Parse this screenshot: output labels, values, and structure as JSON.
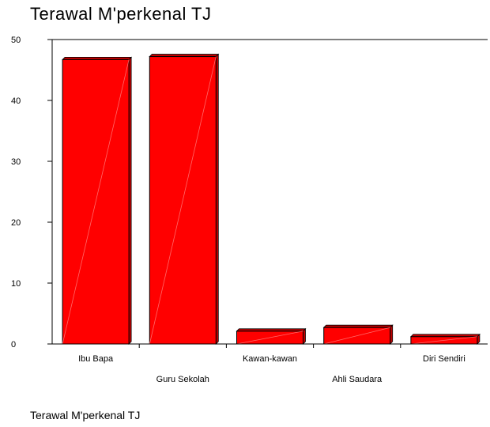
{
  "chart_data": {
    "type": "bar",
    "title": "Terawal M'perkenal TJ",
    "xlabel": "Terawal M'perkenal TJ",
    "ylabel": "",
    "categories": [
      "Ibu Bapa",
      "Guru Sekolah",
      "Kawan-kawan",
      "Ahli Saudara",
      "Diri Sendiri"
    ],
    "values": [
      46.7,
      47.2,
      2.1,
      2.7,
      1.2
    ],
    "ylim": [
      0,
      50
    ],
    "yticks": [
      0,
      10,
      20,
      30,
      40,
      50
    ],
    "grid": false,
    "legend": "none",
    "bar_color": "#ff0000",
    "bar_side_color": "#c00000",
    "bar_outline_color": "#000000"
  }
}
